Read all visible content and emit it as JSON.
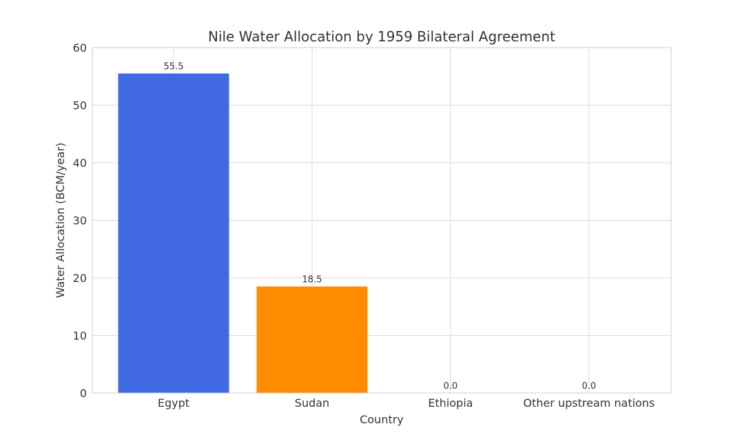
{
  "chart_data": {
    "type": "bar",
    "title": "Nile Water Allocation by 1959 Bilateral Agreement",
    "xlabel": "Country",
    "ylabel": "Water Allocation (BCM/year)",
    "categories": [
      "Egypt",
      "Sudan",
      "Ethiopia",
      "Other upstream nations"
    ],
    "values": [
      55.5,
      18.5,
      0.0,
      0.0
    ],
    "data_labels": [
      "55.5",
      "18.5",
      "0.0",
      "0.0"
    ],
    "colors": [
      "#4169E1",
      "#FF8C00",
      "#2E8B57",
      "#8B0000"
    ],
    "ylim": [
      0,
      60
    ],
    "yticks": [
      0,
      10,
      20,
      30,
      40,
      50,
      60
    ],
    "grid": true,
    "legend": "none"
  }
}
